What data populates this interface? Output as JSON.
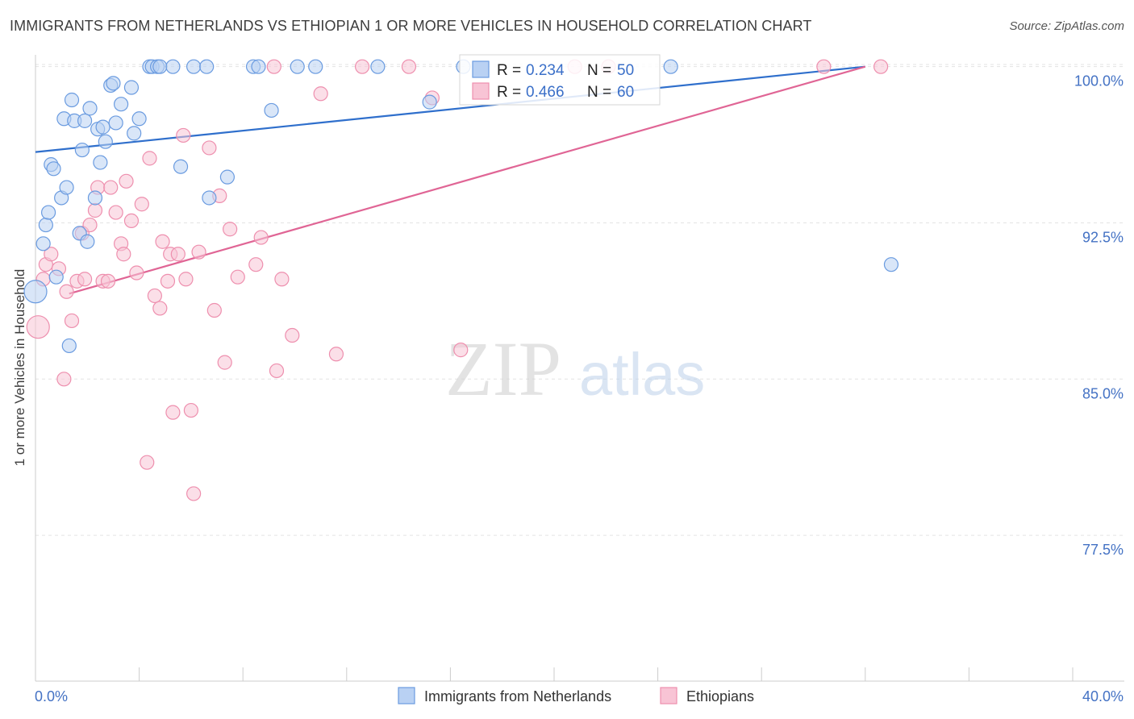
{
  "chart_data": {
    "type": "scatter",
    "title": "IMMIGRANTS FROM NETHERLANDS VS ETHIOPIAN 1 OR MORE VEHICLES IN HOUSEHOLD CORRELATION CHART",
    "source": "Source: ZipAtlas.com",
    "ylabel": "1 or more Vehicles in Household",
    "xlabel": "",
    "xlim": [
      0,
      40
    ],
    "ylim": [
      70.5,
      100.8
    ],
    "x_tick_labels": [
      "0.0%",
      "40.0%"
    ],
    "y_ticks": [
      {
        "value": 100.0,
        "label": "100.0%"
      },
      {
        "value": 92.5,
        "label": "92.5%"
      },
      {
        "value": 85.0,
        "label": "85.0%"
      },
      {
        "value": 77.5,
        "label": "77.5%"
      }
    ],
    "colors": {
      "netherlands": "#6a9be0",
      "ethiopians": "#ee8fae",
      "netherlands_line": "#2f6fcc",
      "ethiopians_line": "#e06595",
      "tick_label": "#4472c4"
    },
    "legend": {
      "r_label": "R =",
      "n_label": "N =",
      "entries": [
        {
          "r": "0.234",
          "n": "50"
        },
        {
          "r": "0.466",
          "n": "60"
        }
      ]
    },
    "series": [
      {
        "name": "Immigrants from Netherlands",
        "trend": {
          "x0": 0,
          "y0": 95.9,
          "x1": 32.0,
          "y1": 100.0
        },
        "points": [
          [
            0.0,
            89.2
          ],
          [
            0.3,
            91.5
          ],
          [
            0.4,
            92.4
          ],
          [
            0.5,
            93.0
          ],
          [
            0.6,
            95.3
          ],
          [
            0.7,
            95.1
          ],
          [
            0.8,
            89.9
          ],
          [
            1.0,
            93.7
          ],
          [
            1.1,
            97.5
          ],
          [
            1.2,
            94.2
          ],
          [
            1.3,
            86.6
          ],
          [
            1.4,
            98.4
          ],
          [
            1.5,
            97.4
          ],
          [
            1.7,
            92.0
          ],
          [
            1.8,
            96.0
          ],
          [
            1.9,
            97.4
          ],
          [
            2.0,
            91.6
          ],
          [
            2.1,
            98.0
          ],
          [
            2.3,
            93.7
          ],
          [
            2.4,
            97.0
          ],
          [
            2.5,
            95.4
          ],
          [
            2.6,
            97.1
          ],
          [
            2.7,
            96.4
          ],
          [
            2.9,
            99.1
          ],
          [
            3.0,
            99.2
          ],
          [
            3.1,
            97.3
          ],
          [
            3.3,
            98.2
          ],
          [
            3.7,
            99.0
          ],
          [
            3.8,
            96.8
          ],
          [
            4.0,
            97.5
          ],
          [
            4.4,
            100.0
          ],
          [
            4.5,
            100.0
          ],
          [
            4.7,
            100.0
          ],
          [
            4.8,
            100.0
          ],
          [
            5.3,
            100.0
          ],
          [
            5.6,
            95.2
          ],
          [
            6.1,
            100.0
          ],
          [
            6.6,
            100.0
          ],
          [
            6.7,
            93.7
          ],
          [
            7.4,
            94.7
          ],
          [
            8.4,
            100.0
          ],
          [
            8.6,
            100.0
          ],
          [
            9.1,
            97.9
          ],
          [
            10.1,
            100.0
          ],
          [
            10.8,
            100.0
          ],
          [
            13.2,
            100.0
          ],
          [
            15.2,
            98.3
          ],
          [
            16.5,
            100.0
          ],
          [
            24.5,
            100.0
          ],
          [
            33.0,
            90.5
          ]
        ]
      },
      {
        "name": "Ethiopians",
        "trend": {
          "x0": 1.3,
          "y0": 89.1,
          "x1": 32.0,
          "y1": 100.0
        },
        "points": [
          [
            0.1,
            87.5
          ],
          [
            0.3,
            89.8
          ],
          [
            0.4,
            90.5
          ],
          [
            0.6,
            91.0
          ],
          [
            0.9,
            90.3
          ],
          [
            1.1,
            85.0
          ],
          [
            1.2,
            89.2
          ],
          [
            1.4,
            87.8
          ],
          [
            1.6,
            89.7
          ],
          [
            1.8,
            92.0
          ],
          [
            1.9,
            89.8
          ],
          [
            2.1,
            92.4
          ],
          [
            2.3,
            93.1
          ],
          [
            2.4,
            94.2
          ],
          [
            2.6,
            89.7
          ],
          [
            2.8,
            89.7
          ],
          [
            2.9,
            94.2
          ],
          [
            3.1,
            93.0
          ],
          [
            3.3,
            91.5
          ],
          [
            3.4,
            91.0
          ],
          [
            3.5,
            94.5
          ],
          [
            3.7,
            92.6
          ],
          [
            3.9,
            90.1
          ],
          [
            4.1,
            93.4
          ],
          [
            4.3,
            81.0
          ],
          [
            4.4,
            95.6
          ],
          [
            4.6,
            89.0
          ],
          [
            4.8,
            88.4
          ],
          [
            4.9,
            91.6
          ],
          [
            5.1,
            89.7
          ],
          [
            5.2,
            91.0
          ],
          [
            5.3,
            83.4
          ],
          [
            5.5,
            91.0
          ],
          [
            5.7,
            96.7
          ],
          [
            5.8,
            89.8
          ],
          [
            6.0,
            83.5
          ],
          [
            6.1,
            79.5
          ],
          [
            6.3,
            91.1
          ],
          [
            6.7,
            96.1
          ],
          [
            6.9,
            88.3
          ],
          [
            7.1,
            93.8
          ],
          [
            7.3,
            85.8
          ],
          [
            7.5,
            92.2
          ],
          [
            7.8,
            89.9
          ],
          [
            8.5,
            90.5
          ],
          [
            8.7,
            91.8
          ],
          [
            9.2,
            100.0
          ],
          [
            9.3,
            85.4
          ],
          [
            9.5,
            89.8
          ],
          [
            9.9,
            87.1
          ],
          [
            11.0,
            98.7
          ],
          [
            11.6,
            86.2
          ],
          [
            12.6,
            100.0
          ],
          [
            14.4,
            100.0
          ],
          [
            15.3,
            98.5
          ],
          [
            16.4,
            86.4
          ],
          [
            20.8,
            100.0
          ],
          [
            22.1,
            100.0
          ],
          [
            30.4,
            100.0
          ],
          [
            32.6,
            100.0
          ]
        ]
      }
    ]
  }
}
